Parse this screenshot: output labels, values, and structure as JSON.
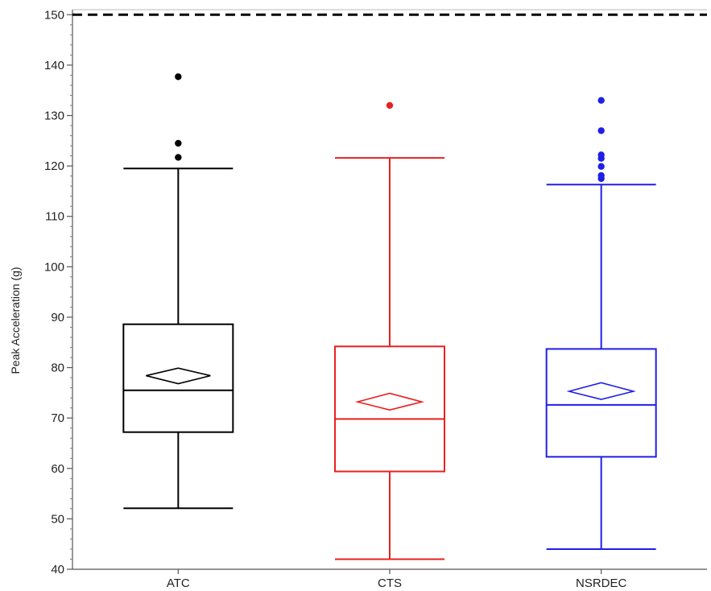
{
  "chart_data": {
    "type": "box",
    "title": "",
    "xlabel": "",
    "ylabel": "Peak Acceleration (g)",
    "ylim": [
      40,
      151
    ],
    "yticks": [
      40,
      50,
      60,
      70,
      80,
      90,
      100,
      110,
      120,
      130,
      140,
      150
    ],
    "grid": false,
    "reference_line": {
      "value": 150,
      "style": "dashed",
      "color": "#000000"
    },
    "categories": [
      "ATC",
      "CTS",
      "NSRDEC"
    ],
    "boxes": [
      {
        "category": "ATC",
        "color": "#000000",
        "whisker_low": 52.1,
        "q1": 67.2,
        "median": 75.5,
        "q3": 88.6,
        "whisker_high": 119.5,
        "mean": 78.4,
        "mean_ci": [
          76.8,
          79.9
        ],
        "outliers": [
          121.7,
          124.5,
          137.7
        ]
      },
      {
        "category": "CTS",
        "color": "#e8201f",
        "whisker_low": 42.0,
        "q1": 59.4,
        "median": 69.8,
        "q3": 84.2,
        "whisker_high": 121.6,
        "mean": 73.2,
        "mean_ci": [
          71.6,
          74.9
        ],
        "outliers": [
          132.0
        ]
      },
      {
        "category": "NSRDEC",
        "color": "#1f1fe8",
        "whisker_low": 44.0,
        "q1": 62.3,
        "median": 72.6,
        "q3": 83.7,
        "whisker_high": 116.3,
        "mean": 75.3,
        "mean_ci": [
          73.7,
          77.0
        ],
        "outliers": [
          117.5,
          118.1,
          119.9,
          121.5,
          122.2,
          127.0,
          133.0
        ]
      }
    ]
  }
}
